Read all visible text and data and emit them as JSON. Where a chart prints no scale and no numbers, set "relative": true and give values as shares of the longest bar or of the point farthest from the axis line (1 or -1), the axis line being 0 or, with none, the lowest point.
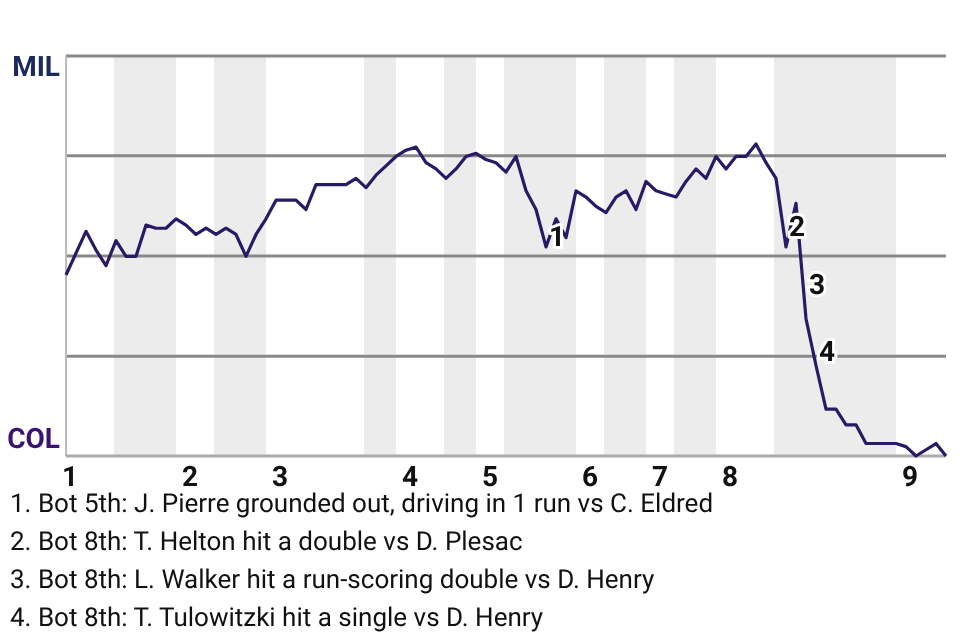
{
  "chart_data": {
    "type": "line",
    "relative": true,
    "categories": [
      "1",
      null,
      null,
      null,
      null,
      null,
      null,
      null,
      null,
      null,
      null,
      null,
      "2",
      null,
      null,
      null,
      null,
      null,
      null,
      null,
      null,
      "3",
      null,
      null,
      null,
      null,
      null,
      null,
      null,
      null,
      null,
      null,
      null,
      null,
      "4",
      null,
      null,
      null,
      null,
      null,
      null,
      null,
      "5",
      null,
      null,
      null,
      null,
      null,
      null,
      null,
      null,
      null,
      "6",
      null,
      null,
      null,
      null,
      null,
      null,
      "7",
      null,
      null,
      null,
      null,
      null,
      null,
      "8",
      null,
      null,
      null,
      null,
      null,
      null,
      null,
      null,
      null,
      null,
      null,
      null,
      null,
      null,
      null,
      null,
      null,
      "9",
      null,
      null,
      null,
      null
    ],
    "marker": "none",
    "line_style": "solid",
    "ref_lines": [
      {
        "axis": "y",
        "value": 1.282,
        "label": "MIL",
        "color": "#888888"
      },
      {
        "axis": "y",
        "value": 0.962,
        "color": "#888888"
      },
      {
        "axis": "y",
        "value": 0.641,
        "color": "#888888"
      },
      {
        "axis": "y",
        "value": 0.32,
        "color": "#888888"
      }
    ],
    "series": [
      {
        "color": "#2a1a66",
        "values": [
          0.58,
          0.65,
          0.72,
          0.66,
          0.61,
          0.69,
          0.64,
          0.64,
          0.74,
          0.73,
          0.73,
          0.76,
          0.74,
          0.71,
          0.73,
          0.71,
          0.73,
          0.71,
          0.64,
          0.71,
          0.76,
          0.82,
          0.82,
          0.82,
          0.79,
          0.87,
          0.87,
          0.87,
          0.87,
          0.89,
          0.86,
          0.9,
          0.93,
          0.96,
          0.98,
          0.99,
          0.94,
          0.92,
          0.89,
          0.92,
          0.96,
          0.97,
          0.95,
          0.94,
          0.91,
          0.96,
          0.85,
          0.79,
          0.67,
          0.76,
          0.7,
          0.85,
          0.83,
          0.8,
          0.78,
          0.83,
          0.85,
          0.79,
          0.88,
          0.85,
          0.84,
          0.83,
          0.88,
          0.92,
          0.89,
          0.96,
          0.92,
          0.96,
          0.96,
          1,
          0.94,
          0.89,
          0.67,
          0.81,
          0.44,
          0.29,
          0.15,
          0.15,
          0.1,
          0.1,
          0.04,
          0.04,
          0.04,
          0.04,
          0.03,
          0,
          0.02,
          0.04,
          0
        ]
      }
    ],
    "annotations": [
      "COL",
      {
        "text": "1",
        "y": 0.67
      },
      {
        "text": "2",
        "y": 0.67
      },
      {
        "text": "3",
        "y": 0.44
      },
      {
        "text": "4",
        "y": 0.29
      },
      "1. Bot 5th: J. Pierre grounded out, driving in 1 run vs C. Eldred",
      "2. Bot 8th: T. Helton hit a double vs D. Plesac",
      "3. Bot 8th: L. Walker hit a run-scoring double vs D. Henry",
      "4. Bot 8th: T. Tulowitzki hit a single vs D. Henry"
    ]
  }
}
